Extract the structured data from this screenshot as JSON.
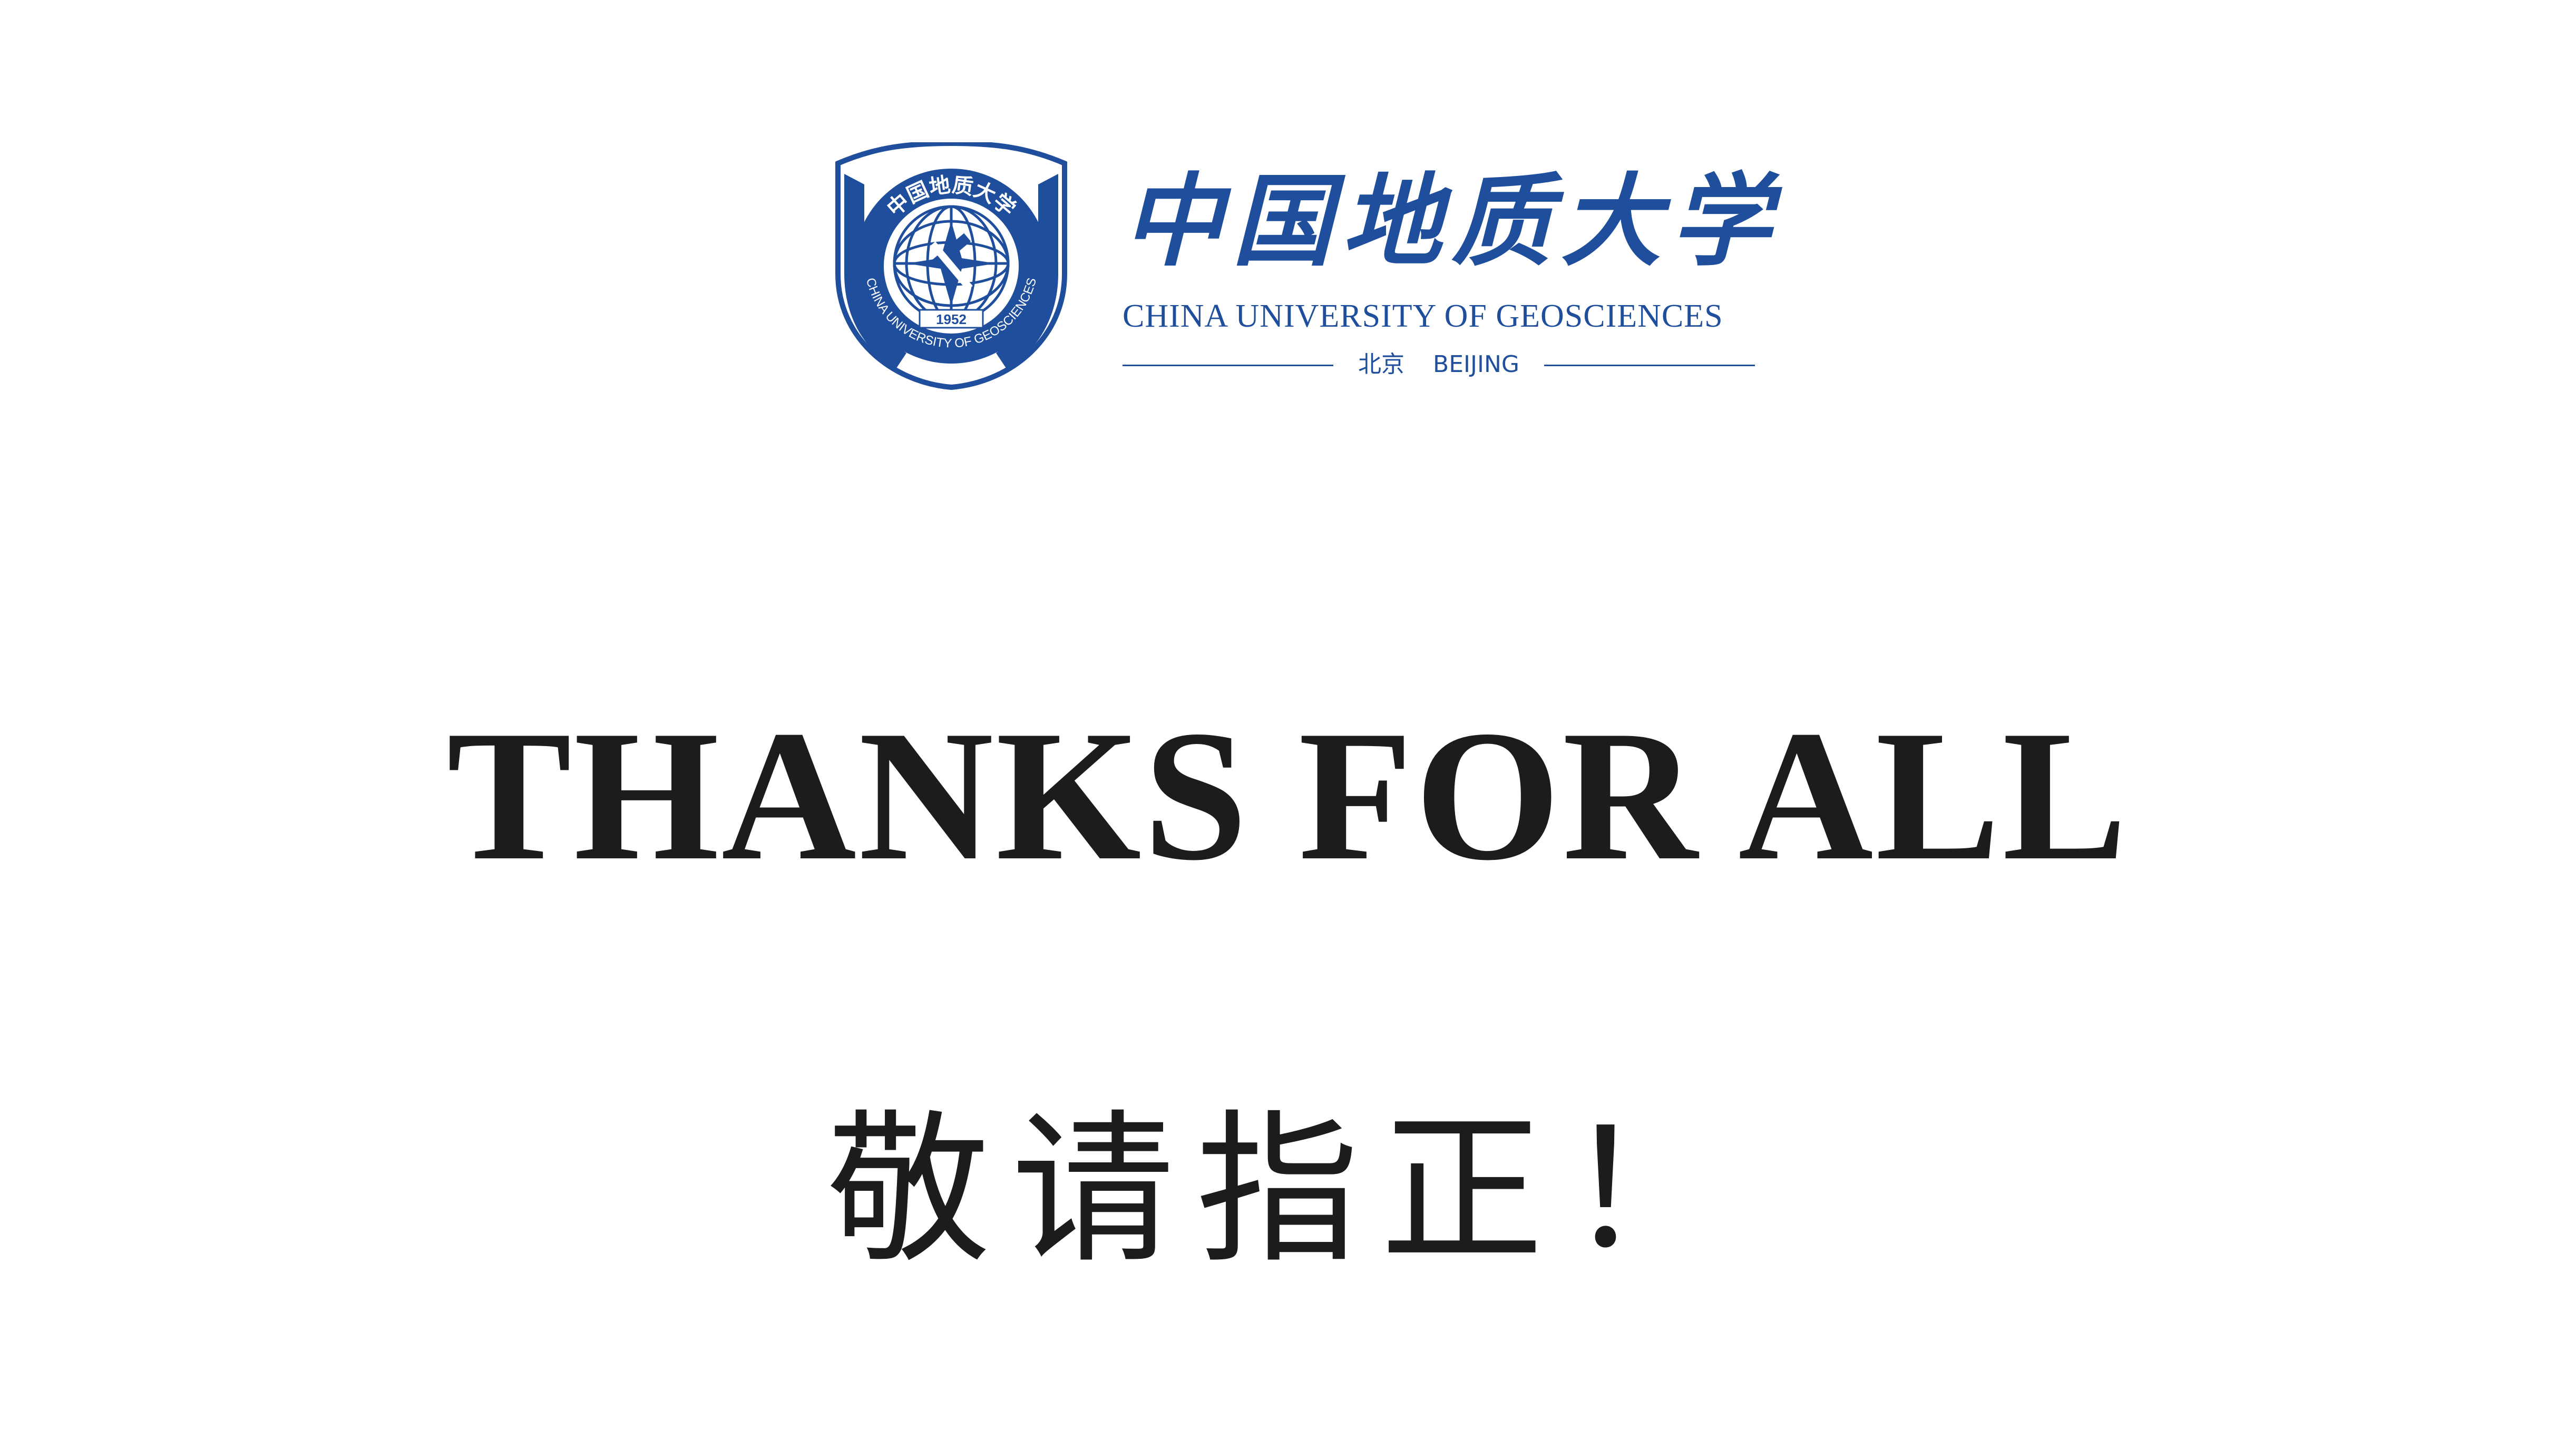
{
  "logo": {
    "seal": {
      "ring_text_top": "中国地质大学",
      "ring_text_bottom": "CHINA UNIVERSITY OF GEOSCIENCES",
      "year": "1952"
    },
    "name_cn": "中国地质大学",
    "name_en": "CHINA UNIVERSITY OF GEOSCIENCES",
    "location_cn": "北京",
    "location_en": "BEIJING"
  },
  "headline": "THANKS FOR ALL",
  "subline": "敬请指正！",
  "colors": {
    "brand_blue": "#1f4e9c",
    "text_dark": "#1c1c1c",
    "background": "#ffffff"
  }
}
